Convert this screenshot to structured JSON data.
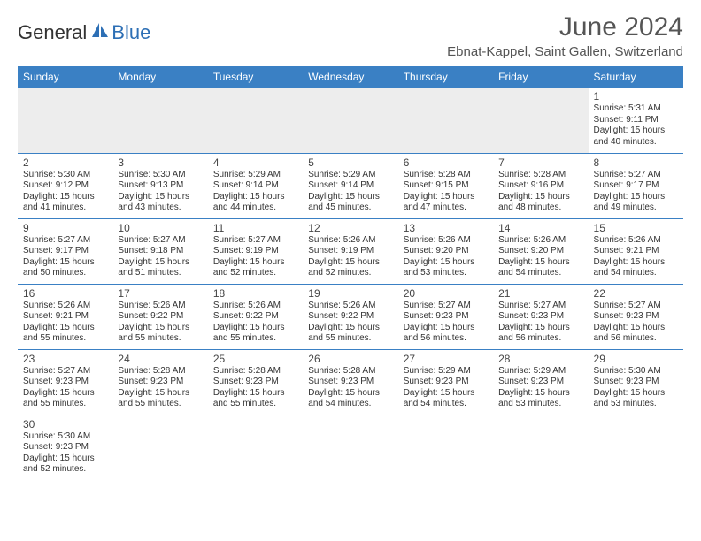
{
  "logo": {
    "text1": "General",
    "text2": "Blue"
  },
  "title": "June 2024",
  "location": "Ebnat-Kappel, Saint Gallen, Switzerland",
  "colors": {
    "header_bg": "#3a80c4",
    "header_fg": "#ffffff",
    "border": "#3a80c4",
    "empty_bg": "#ededed",
    "text": "#333333",
    "title_fg": "#555555"
  },
  "weekdays": [
    "Sunday",
    "Monday",
    "Tuesday",
    "Wednesday",
    "Thursday",
    "Friday",
    "Saturday"
  ],
  "weeks": [
    [
      null,
      null,
      null,
      null,
      null,
      null,
      {
        "d": "1",
        "sr": "Sunrise: 5:31 AM",
        "ss": "Sunset: 9:11 PM",
        "dl1": "Daylight: 15 hours",
        "dl2": "and 40 minutes."
      }
    ],
    [
      {
        "d": "2",
        "sr": "Sunrise: 5:30 AM",
        "ss": "Sunset: 9:12 PM",
        "dl1": "Daylight: 15 hours",
        "dl2": "and 41 minutes."
      },
      {
        "d": "3",
        "sr": "Sunrise: 5:30 AM",
        "ss": "Sunset: 9:13 PM",
        "dl1": "Daylight: 15 hours",
        "dl2": "and 43 minutes."
      },
      {
        "d": "4",
        "sr": "Sunrise: 5:29 AM",
        "ss": "Sunset: 9:14 PM",
        "dl1": "Daylight: 15 hours",
        "dl2": "and 44 minutes."
      },
      {
        "d": "5",
        "sr": "Sunrise: 5:29 AM",
        "ss": "Sunset: 9:14 PM",
        "dl1": "Daylight: 15 hours",
        "dl2": "and 45 minutes."
      },
      {
        "d": "6",
        "sr": "Sunrise: 5:28 AM",
        "ss": "Sunset: 9:15 PM",
        "dl1": "Daylight: 15 hours",
        "dl2": "and 47 minutes."
      },
      {
        "d": "7",
        "sr": "Sunrise: 5:28 AM",
        "ss": "Sunset: 9:16 PM",
        "dl1": "Daylight: 15 hours",
        "dl2": "and 48 minutes."
      },
      {
        "d": "8",
        "sr": "Sunrise: 5:27 AM",
        "ss": "Sunset: 9:17 PM",
        "dl1": "Daylight: 15 hours",
        "dl2": "and 49 minutes."
      }
    ],
    [
      {
        "d": "9",
        "sr": "Sunrise: 5:27 AM",
        "ss": "Sunset: 9:17 PM",
        "dl1": "Daylight: 15 hours",
        "dl2": "and 50 minutes."
      },
      {
        "d": "10",
        "sr": "Sunrise: 5:27 AM",
        "ss": "Sunset: 9:18 PM",
        "dl1": "Daylight: 15 hours",
        "dl2": "and 51 minutes."
      },
      {
        "d": "11",
        "sr": "Sunrise: 5:27 AM",
        "ss": "Sunset: 9:19 PM",
        "dl1": "Daylight: 15 hours",
        "dl2": "and 52 minutes."
      },
      {
        "d": "12",
        "sr": "Sunrise: 5:26 AM",
        "ss": "Sunset: 9:19 PM",
        "dl1": "Daylight: 15 hours",
        "dl2": "and 52 minutes."
      },
      {
        "d": "13",
        "sr": "Sunrise: 5:26 AM",
        "ss": "Sunset: 9:20 PM",
        "dl1": "Daylight: 15 hours",
        "dl2": "and 53 minutes."
      },
      {
        "d": "14",
        "sr": "Sunrise: 5:26 AM",
        "ss": "Sunset: 9:20 PM",
        "dl1": "Daylight: 15 hours",
        "dl2": "and 54 minutes."
      },
      {
        "d": "15",
        "sr": "Sunrise: 5:26 AM",
        "ss": "Sunset: 9:21 PM",
        "dl1": "Daylight: 15 hours",
        "dl2": "and 54 minutes."
      }
    ],
    [
      {
        "d": "16",
        "sr": "Sunrise: 5:26 AM",
        "ss": "Sunset: 9:21 PM",
        "dl1": "Daylight: 15 hours",
        "dl2": "and 55 minutes."
      },
      {
        "d": "17",
        "sr": "Sunrise: 5:26 AM",
        "ss": "Sunset: 9:22 PM",
        "dl1": "Daylight: 15 hours",
        "dl2": "and 55 minutes."
      },
      {
        "d": "18",
        "sr": "Sunrise: 5:26 AM",
        "ss": "Sunset: 9:22 PM",
        "dl1": "Daylight: 15 hours",
        "dl2": "and 55 minutes."
      },
      {
        "d": "19",
        "sr": "Sunrise: 5:26 AM",
        "ss": "Sunset: 9:22 PM",
        "dl1": "Daylight: 15 hours",
        "dl2": "and 55 minutes."
      },
      {
        "d": "20",
        "sr": "Sunrise: 5:27 AM",
        "ss": "Sunset: 9:23 PM",
        "dl1": "Daylight: 15 hours",
        "dl2": "and 56 minutes."
      },
      {
        "d": "21",
        "sr": "Sunrise: 5:27 AM",
        "ss": "Sunset: 9:23 PM",
        "dl1": "Daylight: 15 hours",
        "dl2": "and 56 minutes."
      },
      {
        "d": "22",
        "sr": "Sunrise: 5:27 AM",
        "ss": "Sunset: 9:23 PM",
        "dl1": "Daylight: 15 hours",
        "dl2": "and 56 minutes."
      }
    ],
    [
      {
        "d": "23",
        "sr": "Sunrise: 5:27 AM",
        "ss": "Sunset: 9:23 PM",
        "dl1": "Daylight: 15 hours",
        "dl2": "and 55 minutes."
      },
      {
        "d": "24",
        "sr": "Sunrise: 5:28 AM",
        "ss": "Sunset: 9:23 PM",
        "dl1": "Daylight: 15 hours",
        "dl2": "and 55 minutes."
      },
      {
        "d": "25",
        "sr": "Sunrise: 5:28 AM",
        "ss": "Sunset: 9:23 PM",
        "dl1": "Daylight: 15 hours",
        "dl2": "and 55 minutes."
      },
      {
        "d": "26",
        "sr": "Sunrise: 5:28 AM",
        "ss": "Sunset: 9:23 PM",
        "dl1": "Daylight: 15 hours",
        "dl2": "and 54 minutes."
      },
      {
        "d": "27",
        "sr": "Sunrise: 5:29 AM",
        "ss": "Sunset: 9:23 PM",
        "dl1": "Daylight: 15 hours",
        "dl2": "and 54 minutes."
      },
      {
        "d": "28",
        "sr": "Sunrise: 5:29 AM",
        "ss": "Sunset: 9:23 PM",
        "dl1": "Daylight: 15 hours",
        "dl2": "and 53 minutes."
      },
      {
        "d": "29",
        "sr": "Sunrise: 5:30 AM",
        "ss": "Sunset: 9:23 PM",
        "dl1": "Daylight: 15 hours",
        "dl2": "and 53 minutes."
      }
    ],
    [
      {
        "d": "30",
        "sr": "Sunrise: 5:30 AM",
        "ss": "Sunset: 9:23 PM",
        "dl1": "Daylight: 15 hours",
        "dl2": "and 52 minutes."
      },
      null,
      null,
      null,
      null,
      null,
      null
    ]
  ]
}
